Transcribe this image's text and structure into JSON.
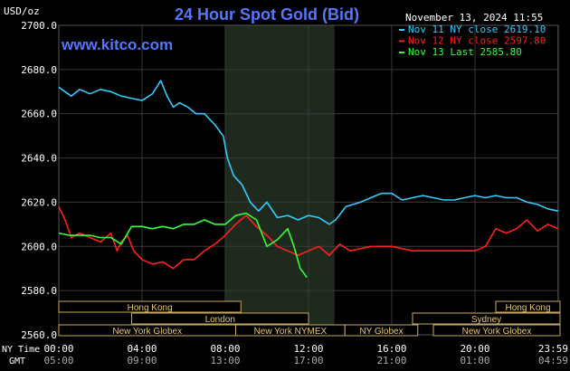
{
  "header": {
    "unit_label": "USD/oz",
    "title": "24 Hour Spot Gold (Bid)",
    "datetime": "November 13, 2024 11:55",
    "watermark": "www.kitco.com"
  },
  "time_labels": {
    "ny_label": "NY Time",
    "gmt_label": "GMT",
    "ny_ticks": [
      "00:00",
      "04:00",
      "08:00",
      "12:00",
      "16:00",
      "20:00",
      "23:59"
    ],
    "gmt_ticks": [
      "05:00",
      "09:00",
      "13:00",
      "17:00",
      "21:00",
      "01:00",
      "04:59"
    ]
  },
  "colors": {
    "background": "#000000",
    "grid": "#3a3a3a",
    "axis_text": "#ffffff",
    "title": "#5577ff",
    "watermark": "#5577ff",
    "highlight_band": "#1e2a1e",
    "session_box_fill": "#000000",
    "session_box_stroke": "#c8a860",
    "session_box_text": "#e8c878"
  },
  "sessions": [
    {
      "name": "Hong Kong",
      "start": 0.0,
      "end": 8.75,
      "row": 0
    },
    {
      "name": "Hong Kong",
      "start": 21.0,
      "end": 24.0,
      "row": 0
    },
    {
      "name": "London",
      "start": 3.5,
      "end": 12.0,
      "row": 1
    },
    {
      "name": "Sydney",
      "start": 17.0,
      "end": 24.0,
      "row": 1
    },
    {
      "name": "New York Globex",
      "start": 0.0,
      "end": 8.5,
      "row": 2
    },
    {
      "name": "New York NYMEX",
      "start": 8.5,
      "end": 13.75,
      "row": 2
    },
    {
      "name": "NY Globex",
      "start": 13.75,
      "end": 17.25,
      "row": 2
    },
    {
      "name": "New York Globex",
      "start": 18.0,
      "end": 24.0,
      "row": 2
    }
  ],
  "chart_data": {
    "type": "line",
    "title": "24 Hour Spot Gold (Bid)",
    "ylabel": "USD/oz",
    "xlabel": "",
    "x_unit": "hours since 00:00 NY Time",
    "xlim": [
      0,
      24
    ],
    "ylim": [
      2560,
      2700
    ],
    "yticks": [
      2560.0,
      2580.0,
      2600.0,
      2620.0,
      2640.0,
      2660.0,
      2680.0,
      2700.0
    ],
    "ytick_labels": [
      "2560.0",
      "2580.0",
      "2600.0",
      "2620.0",
      "2640.0",
      "2660.0",
      "2680.0",
      "2700.0"
    ],
    "grid": true,
    "highlight_band": [
      8.0,
      13.25
    ],
    "legend_position": "top-right",
    "series": [
      {
        "name": "Nov 11 NY close 2619.10",
        "color": "#33ccff",
        "x": [
          0.0,
          0.3,
          0.6,
          1.0,
          1.5,
          2.0,
          2.5,
          3.0,
          3.5,
          4.0,
          4.5,
          4.9,
          5.2,
          5.5,
          5.8,
          6.2,
          6.6,
          7.0,
          7.5,
          7.9,
          8.1,
          8.4,
          8.8,
          9.2,
          9.6,
          10.0,
          10.5,
          11.0,
          11.5,
          12.0,
          12.5,
          13.0,
          13.3,
          13.8,
          14.5,
          15.0,
          15.5,
          16.0,
          16.5,
          17.0,
          17.5,
          18.0,
          18.5,
          19.0,
          19.5,
          20.0,
          20.5,
          21.0,
          21.5,
          22.0,
          22.5,
          23.0,
          23.5,
          23.99
        ],
        "y": [
          2672,
          2670,
          2668,
          2671,
          2669,
          2671,
          2670,
          2668,
          2667,
          2666,
          2669,
          2675,
          2668,
          2663,
          2665,
          2663,
          2660,
          2660,
          2655,
          2650,
          2640,
          2632,
          2628,
          2620,
          2616,
          2620,
          2613,
          2614,
          2612,
          2614,
          2613,
          2610,
          2612,
          2618,
          2620,
          2622,
          2624,
          2624,
          2621,
          2622,
          2623,
          2622,
          2621,
          2621,
          2622,
          2623,
          2622,
          2623,
          2622,
          2622,
          2620,
          2619,
          2617,
          2616
        ]
      },
      {
        "name": "Nov 12 NY close 2597.80",
        "color": "#ff2020",
        "x": [
          0.0,
          0.3,
          0.6,
          1.0,
          1.5,
          2.0,
          2.5,
          2.8,
          3.0,
          3.3,
          3.6,
          4.0,
          4.5,
          5.0,
          5.5,
          6.0,
          6.5,
          7.0,
          7.5,
          8.0,
          8.5,
          9.0,
          9.5,
          10.0,
          10.5,
          11.0,
          11.5,
          12.0,
          12.5,
          13.0,
          13.5,
          14.0,
          15.0,
          16.0,
          17.0,
          18.0,
          19.0,
          20.0,
          20.5,
          21.0,
          21.5,
          22.0,
          22.5,
          23.0,
          23.5,
          23.99
        ],
        "y": [
          2618,
          2612,
          2604,
          2606,
          2604,
          2602,
          2606,
          2598,
          2602,
          2605,
          2598,
          2594,
          2592,
          2593,
          2590,
          2594,
          2594,
          2598,
          2601,
          2605,
          2610,
          2614,
          2609,
          2605,
          2600,
          2598,
          2596,
          2598,
          2600,
          2596,
          2601,
          2598,
          2600,
          2600,
          2598,
          2598,
          2598,
          2598,
          2600,
          2608,
          2606,
          2608,
          2612,
          2607,
          2610,
          2608
        ]
      },
      {
        "name": "Nov 13 Last 2585.80",
        "color": "#33ff33",
        "x": [
          0.0,
          0.5,
          1.0,
          1.5,
          2.0,
          2.5,
          3.0,
          3.5,
          4.0,
          4.5,
          5.0,
          5.5,
          6.0,
          6.5,
          7.0,
          7.5,
          8.0,
          8.5,
          9.0,
          9.5,
          10.0,
          10.5,
          11.0,
          11.3,
          11.6,
          11.92
        ],
        "y": [
          2606,
          2605,
          2605,
          2605,
          2604,
          2604,
          2601,
          2609,
          2609,
          2608,
          2609,
          2608,
          2610,
          2610,
          2612,
          2610,
          2610,
          2614,
          2615,
          2612,
          2600,
          2603,
          2608,
          2600,
          2590,
          2586
        ]
      }
    ]
  }
}
